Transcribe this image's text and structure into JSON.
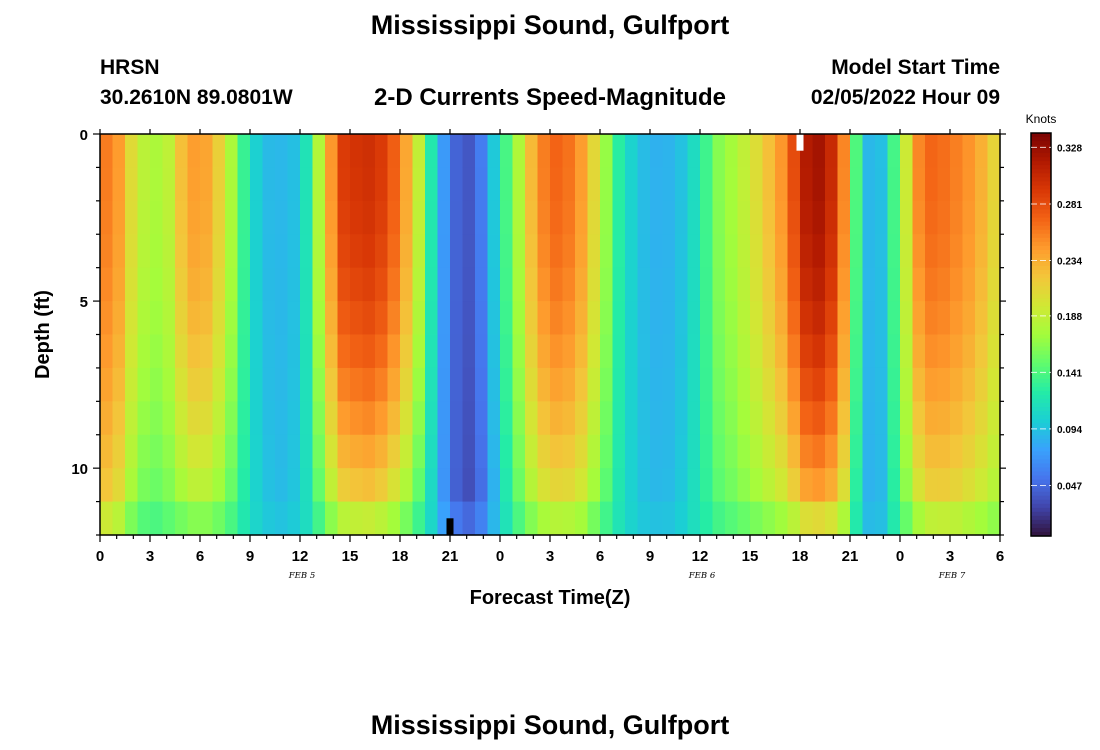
{
  "header": {
    "title": "Mississippi Sound, Gulfport",
    "station_id": "HRSN",
    "station_coords": "30.2610N  89.0801W",
    "subtitle": "2-D Currents Speed-Magnitude",
    "model_start_label": "Model Start Time",
    "model_start_value": "02/05/2022 Hour 09",
    "repeat_title": "Mississippi Sound, Gulfport"
  },
  "chart_data": {
    "type": "heatmap",
    "title": "2-D Currents Speed-Magnitude",
    "xlabel": "Forecast Time(Z)",
    "ylabel": "Depth (ft)",
    "x_tick_labels": [
      "0",
      "3",
      "6",
      "9",
      "12",
      "15",
      "18",
      "21",
      "0",
      "3",
      "6",
      "9",
      "12",
      "15",
      "18",
      "21",
      "0",
      "3",
      "6"
    ],
    "x_range_hours": [
      0,
      54
    ],
    "y_ticks": [
      0,
      5,
      10
    ],
    "y_range_ft": [
      0,
      12
    ],
    "date_labels": [
      {
        "label": "FEB 5",
        "hour": 12
      },
      {
        "label": "FEB 6",
        "hour": 36
      },
      {
        "label": "FEB 7",
        "hour": 51
      }
    ],
    "colorbar": {
      "title": "Knots",
      "tick_labels": [
        "0.328",
        "0.281",
        "0.234",
        "0.188",
        "0.141",
        "0.094",
        "0.047"
      ],
      "ticks": [
        0.328,
        0.281,
        0.234,
        0.188,
        0.141,
        0.094,
        0.047
      ],
      "range": [
        0.005,
        0.34
      ],
      "colors": [
        "#30123b",
        "#4145ab",
        "#4675ed",
        "#39a2fc",
        "#1bcfd4",
        "#24eca6",
        "#61fc6c",
        "#a4fc3b",
        "#d1e834",
        "#f3c63a",
        "#fe9b2d",
        "#f36315",
        "#d93806",
        "#b11901",
        "#7a0403"
      ]
    },
    "speed_profile_hours": [
      0,
      0.5,
      1,
      2,
      3,
      4,
      5,
      6,
      7,
      8,
      9,
      10,
      11,
      12,
      12.7,
      13.5,
      14.5,
      16,
      17,
      18,
      19,
      20,
      21,
      22,
      23,
      24,
      25,
      26,
      27,
      28,
      29,
      30,
      31,
      32,
      33,
      34,
      35,
      36,
      37,
      38,
      39,
      40,
      41,
      42,
      42.5,
      43,
      44,
      44.8,
      45.5,
      46.5,
      48,
      49,
      50,
      51,
      52,
      53,
      54
    ],
    "surface_speed_knots": [
      0.25,
      0.26,
      0.25,
      0.2,
      0.175,
      0.18,
      0.23,
      0.25,
      0.22,
      0.17,
      0.11,
      0.09,
      0.088,
      0.095,
      0.135,
      0.22,
      0.29,
      0.3,
      0.29,
      0.26,
      0.2,
      0.11,
      0.05,
      0.035,
      0.06,
      0.12,
      0.17,
      0.235,
      0.27,
      0.265,
      0.24,
      0.19,
      0.13,
      0.1,
      0.085,
      0.085,
      0.095,
      0.12,
      0.16,
      0.175,
      0.195,
      0.22,
      0.25,
      0.3,
      0.32,
      0.325,
      0.3,
      0.24,
      0.12,
      0.07,
      0.16,
      0.25,
      0.27,
      0.26,
      0.25,
      0.23,
      0.2
    ],
    "bottom_speed_knots": [
      0.2,
      0.21,
      0.2,
      0.16,
      0.14,
      0.15,
      0.16,
      0.17,
      0.16,
      0.14,
      0.11,
      0.095,
      0.09,
      0.1,
      0.12,
      0.155,
      0.19,
      0.2,
      0.19,
      0.17,
      0.14,
      0.1,
      0.05,
      0.03,
      0.05,
      0.1,
      0.14,
      0.17,
      0.19,
      0.19,
      0.18,
      0.15,
      0.12,
      0.1,
      0.09,
      0.09,
      0.1,
      0.12,
      0.14,
      0.15,
      0.16,
      0.17,
      0.18,
      0.2,
      0.22,
      0.22,
      0.21,
      0.18,
      0.11,
      0.07,
      0.14,
      0.18,
      0.2,
      0.2,
      0.19,
      0.18,
      0.17
    ],
    "data_gaps": [
      {
        "hour": 42,
        "depth_ft": [
          0,
          0.5
        ]
      },
      {
        "hour": 21,
        "depth_ft": [
          11.5,
          12
        ]
      }
    ]
  }
}
